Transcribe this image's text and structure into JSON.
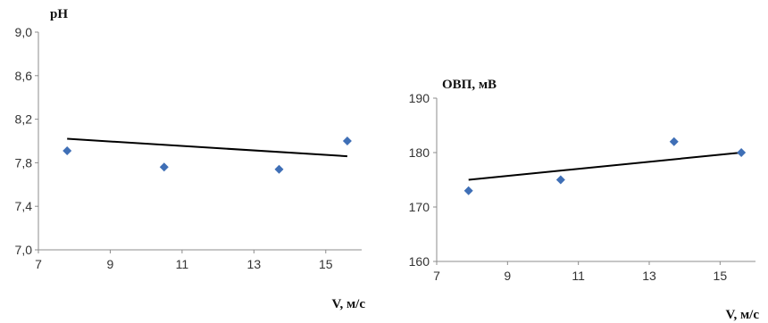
{
  "chart_data": [
    {
      "type": "scatter",
      "ylabel": "pH",
      "xlabel": "V, м/с",
      "xlim": [
        7,
        16
      ],
      "ylim": [
        7.0,
        9.0
      ],
      "x_ticks": [
        7,
        9,
        11,
        13,
        15
      ],
      "x_tick_labels": [
        "7",
        "9",
        "11",
        "13",
        "15"
      ],
      "y_ticks": [
        7.0,
        7.4,
        7.8,
        8.2,
        8.6,
        9.0
      ],
      "y_tick_labels": [
        "7,0",
        "7,4",
        "7,8",
        "8,2",
        "8,6",
        "9,0"
      ],
      "points": [
        {
          "x": 7.8,
          "y": 7.91
        },
        {
          "x": 10.5,
          "y": 7.76
        },
        {
          "x": 13.7,
          "y": 7.74
        },
        {
          "x": 15.6,
          "y": 8.0
        }
      ],
      "trendline": {
        "x": [
          7.8,
          15.6
        ],
        "y": [
          8.02,
          7.86
        ]
      },
      "marker_color": "#3f6fb6",
      "line_color": "#000000",
      "grid": false
    },
    {
      "type": "scatter",
      "ylabel": "ОВП, мВ",
      "xlabel": "V, м/с",
      "xlim": [
        7,
        16
      ],
      "ylim": [
        160,
        190
      ],
      "x_ticks": [
        7,
        9,
        11,
        13,
        15
      ],
      "x_tick_labels": [
        "7",
        "9",
        "11",
        "13",
        "15"
      ],
      "y_ticks": [
        160,
        170,
        180,
        190
      ],
      "y_tick_labels": [
        "160",
        "170",
        "180",
        "190"
      ],
      "points": [
        {
          "x": 7.9,
          "y": 173
        },
        {
          "x": 10.5,
          "y": 175
        },
        {
          "x": 13.7,
          "y": 182
        },
        {
          "x": 15.6,
          "y": 180
        }
      ],
      "trendline": {
        "x": [
          7.9,
          15.6
        ],
        "y": [
          175,
          180
        ]
      },
      "marker_color": "#3f6fb6",
      "line_color": "#000000",
      "grid": false
    }
  ]
}
